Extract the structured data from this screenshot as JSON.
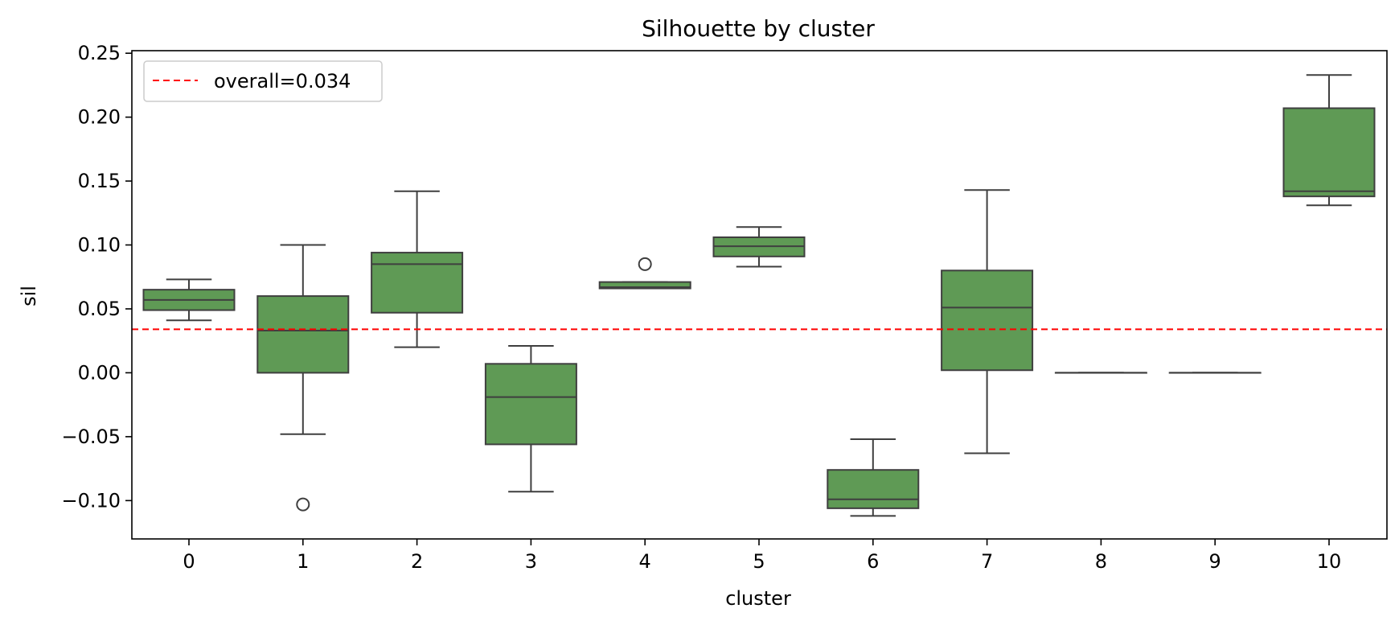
{
  "chart_data": {
    "type": "box",
    "title": "Silhouette by cluster",
    "xlabel": "cluster",
    "ylabel": "sil",
    "ylim": [
      -0.13,
      0.252
    ],
    "yticks": [
      -0.1,
      -0.05,
      0.0,
      0.05,
      0.1,
      0.15,
      0.2,
      0.25
    ],
    "ytick_labels": [
      "−0.10",
      "−0.05",
      "0.00",
      "0.05",
      "0.10",
      "0.15",
      "0.20",
      "0.25"
    ],
    "categories": [
      "0",
      "1",
      "2",
      "3",
      "4",
      "5",
      "6",
      "7",
      "8",
      "9",
      "10"
    ],
    "box_color": "#5f9a55",
    "edge_color": "#3f3f3f",
    "boxes": [
      {
        "cluster": "0",
        "whislo": 0.041,
        "q1": 0.049,
        "med": 0.057,
        "q3": 0.065,
        "whishi": 0.073,
        "fliers": []
      },
      {
        "cluster": "1",
        "whislo": -0.048,
        "q1": 0.0,
        "med": 0.033,
        "q3": 0.06,
        "whishi": 0.1,
        "fliers": [
          -0.103
        ]
      },
      {
        "cluster": "2",
        "whislo": 0.02,
        "q1": 0.047,
        "med": 0.085,
        "q3": 0.094,
        "whishi": 0.142,
        "fliers": []
      },
      {
        "cluster": "3",
        "whislo": -0.093,
        "q1": -0.056,
        "med": -0.019,
        "q3": 0.007,
        "whishi": 0.021,
        "fliers": []
      },
      {
        "cluster": "4",
        "whislo": 0.066,
        "q1": 0.066,
        "med": 0.067,
        "q3": 0.071,
        "whishi": 0.071,
        "fliers": [
          0.085
        ]
      },
      {
        "cluster": "5",
        "whislo": 0.083,
        "q1": 0.091,
        "med": 0.099,
        "q3": 0.106,
        "whishi": 0.114,
        "fliers": []
      },
      {
        "cluster": "6",
        "whislo": -0.112,
        "q1": -0.106,
        "med": -0.099,
        "q3": -0.076,
        "whishi": -0.052,
        "fliers": []
      },
      {
        "cluster": "7",
        "whislo": -0.063,
        "q1": 0.002,
        "med": 0.051,
        "q3": 0.08,
        "whishi": 0.143,
        "fliers": []
      },
      {
        "cluster": "8",
        "whislo": 0.0,
        "q1": 0.0,
        "med": 0.0,
        "q3": 0.0,
        "whishi": 0.0,
        "fliers": []
      },
      {
        "cluster": "9",
        "whislo": 0.0,
        "q1": 0.0,
        "med": 0.0,
        "q3": 0.0,
        "whishi": 0.0,
        "fliers": []
      },
      {
        "cluster": "10",
        "whislo": 0.131,
        "q1": 0.138,
        "med": 0.142,
        "q3": 0.207,
        "whishi": 0.233,
        "fliers": []
      }
    ],
    "reference_line": {
      "value": 0.034,
      "label": "overall=0.034",
      "color": "#ff0000",
      "style": "dashed"
    },
    "legend": {
      "placement": "upper-left",
      "entries": [
        "overall=0.034"
      ]
    },
    "grid": false
  }
}
